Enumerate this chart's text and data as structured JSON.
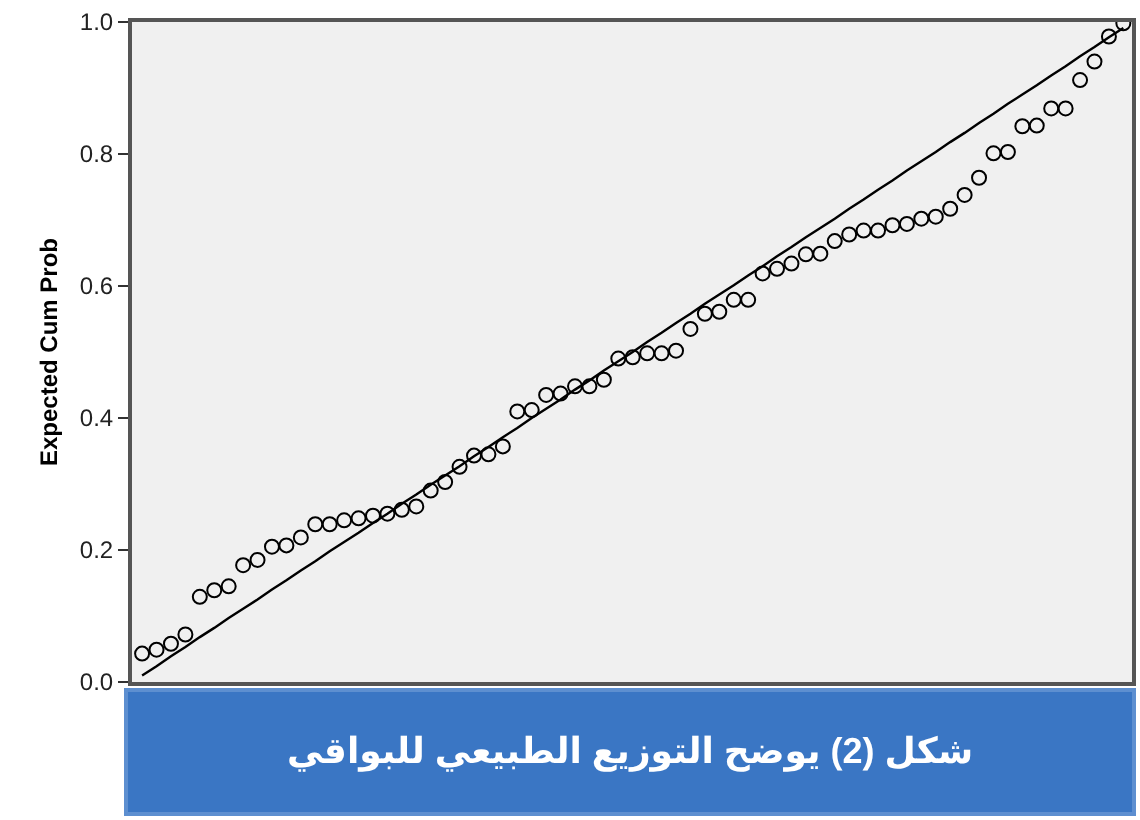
{
  "chart_data": {
    "type": "scatter",
    "ylabel": "Expected Cum Prob",
    "ylim": [
      0,
      1
    ],
    "categories": [
      null,
      null,
      null,
      null,
      null,
      null,
      null,
      null,
      null,
      null,
      null,
      null,
      null,
      null,
      null,
      null,
      null,
      null,
      null,
      null,
      null,
      null,
      null,
      null,
      null,
      null,
      null,
      null,
      null,
      null,
      null,
      null,
      null,
      null,
      null,
      null,
      null,
      null,
      null,
      null,
      null,
      null,
      null,
      null,
      null,
      null,
      null,
      null,
      null,
      null,
      null,
      null,
      null,
      null,
      null,
      null,
      null,
      null,
      null,
      null,
      null,
      null,
      null,
      null,
      null,
      null,
      null,
      null,
      null
    ],
    "yticks": [
      {
        "value": 0,
        "label": "0.0"
      },
      {
        "value": 0.2,
        "label": "0.2"
      },
      {
        "value": 0.4,
        "label": "0.4"
      },
      {
        "value": 0.6,
        "label": "0.6"
      },
      {
        "value": 0.8,
        "label": "0.8"
      },
      {
        "value": 1,
        "label": "1.0"
      }
    ],
    "tick_labels": "y",
    "grid": false,
    "legend": false,
    "marker": "circle",
    "annotations": [
      "شكل (2) يوضح التوزيع الطبيعي للبواقي"
    ],
    "series": [
      {
        "type": "scatter",
        "color": "#000000",
        "values": [
          0.043,
          0.049,
          0.058,
          0.072,
          0.129,
          0.139,
          0.145,
          0.177,
          0.185,
          0.205,
          0.207,
          0.219,
          0.239,
          0.239,
          0.245,
          0.248,
          0.252,
          0.255,
          0.261,
          0.266,
          0.29,
          0.303,
          0.326,
          0.343,
          0.345,
          0.357,
          0.41,
          0.412,
          0.435,
          0.437,
          0.448,
          0.448,
          0.458,
          0.49,
          0.492,
          0.498,
          0.498,
          0.502,
          0.535,
          0.558,
          0.561,
          0.579,
          0.579,
          0.619,
          0.626,
          0.634,
          0.648,
          0.649,
          0.668,
          0.678,
          0.684,
          0.684,
          0.692,
          0.694,
          0.702,
          0.705,
          0.717,
          0.738,
          0.764,
          0.801,
          0.803,
          0.842,
          0.843,
          0.869,
          0.869,
          0.912,
          0.94,
          0.978,
          0.998
        ]
      },
      {
        "type": "line",
        "color": "#000000",
        "marker": "none",
        "values": [
          0.01,
          0.024,
          0.039,
          0.053,
          0.068,
          0.082,
          0.097,
          0.111,
          0.125,
          0.14,
          0.154,
          0.169,
          0.183,
          0.198,
          0.212,
          0.226,
          0.241,
          0.255,
          0.27,
          0.284,
          0.299,
          0.313,
          0.327,
          0.342,
          0.356,
          0.371,
          0.385,
          0.4,
          0.414,
          0.428,
          0.443,
          0.457,
          0.472,
          0.486,
          0.5,
          0.515,
          0.529,
          0.544,
          0.558,
          0.573,
          0.587,
          0.601,
          0.616,
          0.63,
          0.645,
          0.659,
          0.674,
          0.688,
          0.702,
          0.717,
          0.731,
          0.746,
          0.76,
          0.775,
          0.789,
          0.803,
          0.818,
          0.832,
          0.847,
          0.861,
          0.876,
          0.89,
          0.904,
          0.919,
          0.933,
          0.948,
          0.962,
          0.977,
          0.991
        ]
      }
    ]
  }
}
